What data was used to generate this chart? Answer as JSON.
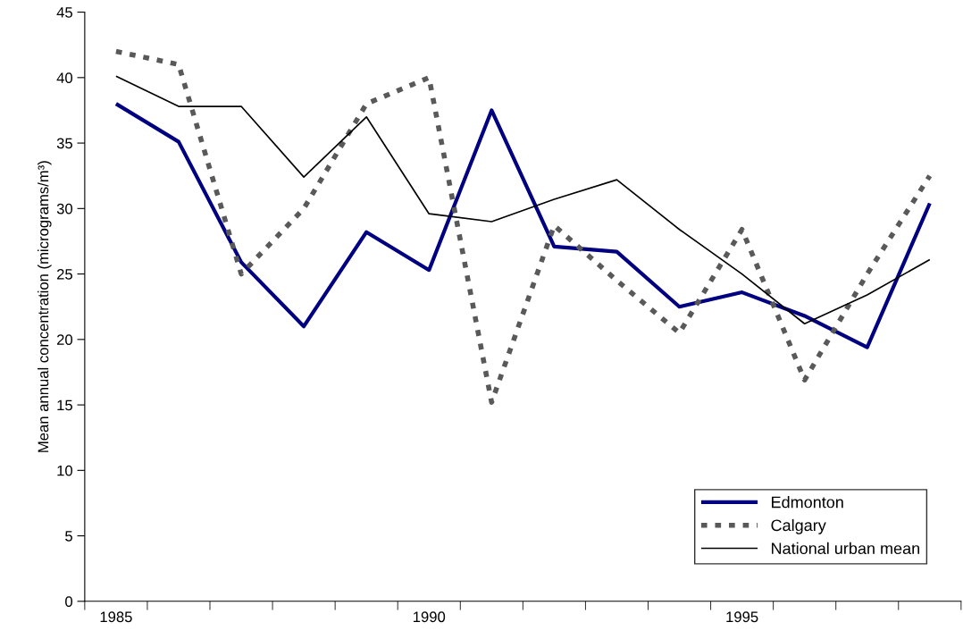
{
  "chart_data": {
    "type": "line",
    "ylabel": "Mean annual concentration (micrograms/m³)",
    "categories": [
      "1985",
      null,
      null,
      null,
      null,
      "1990",
      null,
      null,
      null,
      null,
      "1995",
      null,
      null,
      null
    ],
    "series": [
      {
        "name": "Edmonton",
        "color": "#000080",
        "line_style": "solid",
        "values": [
          38.0,
          35.1,
          25.9,
          21.0,
          28.2,
          25.3,
          37.5,
          27.1,
          26.7,
          22.5,
          23.6,
          21.8,
          19.4,
          30.4
        ]
      },
      {
        "name": "Calgary",
        "color": "#595959",
        "line_style": "dashed",
        "values": [
          42.0,
          41.0,
          25.0,
          30.0,
          38.0,
          40.0,
          15.2,
          28.7,
          24.5,
          20.5,
          28.4,
          16.9,
          25.0,
          32.5
        ]
      },
      {
        "name": "National urban mean",
        "color": "#000000",
        "line_style": "solid",
        "values": [
          40.1,
          37.8,
          37.8,
          32.4,
          37.0,
          29.6,
          29.0,
          30.7,
          32.2,
          28.4,
          25.0,
          21.2,
          23.4,
          26.1
        ]
      }
    ],
    "ylim": [
      0,
      45
    ],
    "yticks": [
      0,
      5,
      10,
      15,
      20,
      25,
      30,
      35,
      40,
      45
    ],
    "grid": false,
    "legend": "bottom right",
    "marker": "none"
  }
}
